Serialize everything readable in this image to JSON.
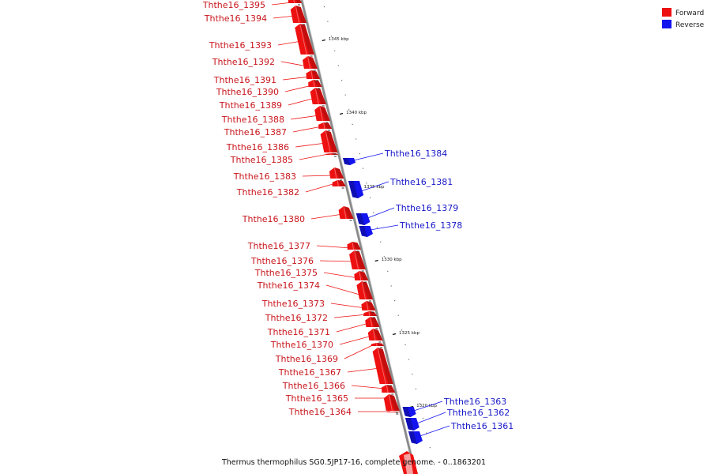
{
  "legend": {
    "forward_label": "Forward",
    "reverse_label": "Reverse",
    "forward_color": "#ee1111",
    "reverse_color": "#1414ee"
  },
  "caption": "Thermus thermophilus SG0.5JP17-16, complete genome. - 0..1863201",
  "ticks": [
    {
      "label": "1345 kbp"
    },
    {
      "label": "1340 kbp"
    },
    {
      "label": "1335 kbp"
    },
    {
      "label": "1330 kbp"
    },
    {
      "label": "1325 kbp"
    },
    {
      "label": "1320 kbp"
    }
  ],
  "genes": [
    {
      "name": "Ththe16_1395",
      "strand": "forward"
    },
    {
      "name": "Ththe16_1394",
      "strand": "forward"
    },
    {
      "name": "Ththe16_1393",
      "strand": "forward"
    },
    {
      "name": "Ththe16_1392",
      "strand": "forward"
    },
    {
      "name": "Ththe16_1391",
      "strand": "forward"
    },
    {
      "name": "Ththe16_1390",
      "strand": "forward"
    },
    {
      "name": "Ththe16_1389",
      "strand": "forward"
    },
    {
      "name": "Ththe16_1388",
      "strand": "forward"
    },
    {
      "name": "Ththe16_1387",
      "strand": "forward"
    },
    {
      "name": "Ththe16_1386",
      "strand": "forward"
    },
    {
      "name": "Ththe16_1385",
      "strand": "forward"
    },
    {
      "name": "Ththe16_1384",
      "strand": "reverse"
    },
    {
      "name": "Ththe16_1383",
      "strand": "forward"
    },
    {
      "name": "Ththe16_1382",
      "strand": "forward"
    },
    {
      "name": "Ththe16_1381",
      "strand": "reverse"
    },
    {
      "name": "Ththe16_1380",
      "strand": "forward"
    },
    {
      "name": "Ththe16_1379",
      "strand": "reverse"
    },
    {
      "name": "Ththe16_1378",
      "strand": "reverse"
    },
    {
      "name": "Ththe16_1377",
      "strand": "forward"
    },
    {
      "name": "Ththe16_1376",
      "strand": "forward"
    },
    {
      "name": "Ththe16_1375",
      "strand": "forward"
    },
    {
      "name": "Ththe16_1374",
      "strand": "forward"
    },
    {
      "name": "Ththe16_1373",
      "strand": "forward"
    },
    {
      "name": "Ththe16_1372",
      "strand": "forward"
    },
    {
      "name": "Ththe16_1371",
      "strand": "forward"
    },
    {
      "name": "Ththe16_1370",
      "strand": "forward"
    },
    {
      "name": "Ththe16_1369",
      "strand": "forward"
    },
    {
      "name": "Ththe16_1367",
      "strand": "forward"
    },
    {
      "name": "Ththe16_1366",
      "strand": "forward"
    },
    {
      "name": "Ththe16_1365",
      "strand": "forward"
    },
    {
      "name": "Ththe16_1364",
      "strand": "forward"
    },
    {
      "name": "Ththe16_1363",
      "strand": "reverse"
    },
    {
      "name": "Ththe16_1362",
      "strand": "reverse"
    },
    {
      "name": "Ththe16_1361",
      "strand": "reverse"
    }
  ]
}
